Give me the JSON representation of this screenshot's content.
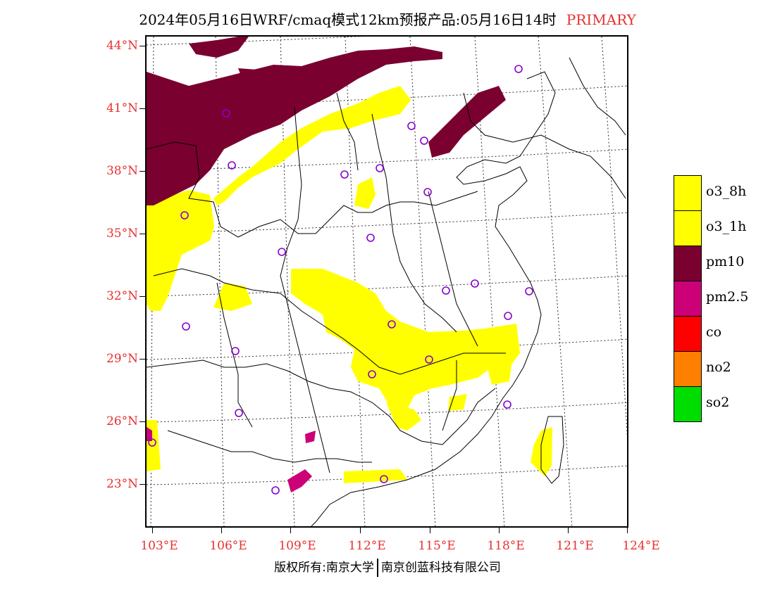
{
  "header": {
    "title": "2024年05月16日WRF/cmaq模式12km预报产品:05月16日14时",
    "tag": "PRIMARY"
  },
  "axes": {
    "latitudes": [
      "44°N",
      "41°N",
      "38°N",
      "35°N",
      "32°N",
      "29°N",
      "26°N",
      "23°N"
    ],
    "longitudes": [
      "103°E",
      "106°E",
      "109°E",
      "112°E",
      "115°E",
      "118°E",
      "121°E",
      "124°E"
    ]
  },
  "legend": [
    {
      "label": "o3_8h",
      "color": "#ffff00"
    },
    {
      "label": "o3_1h",
      "color": "#ffff00"
    },
    {
      "label": "pm10",
      "color": "#7a0030"
    },
    {
      "label": "pm2.5",
      "color": "#cc0077"
    },
    {
      "label": "co",
      "color": "#ff0000"
    },
    {
      "label": "no2",
      "color": "#ff7f00"
    },
    {
      "label": "so2",
      "color": "#00dd00"
    }
  ],
  "colors": {
    "yellow_zone": "#ffff00",
    "pm10_zone": "#7a0030",
    "pm25_zone": "#cc0077",
    "station_marker": "#8800cc",
    "axis_label": "#e83030"
  },
  "footer": {
    "left": "版权所有:南京大学",
    "right": "南京创蓝科技有限公司"
  }
}
